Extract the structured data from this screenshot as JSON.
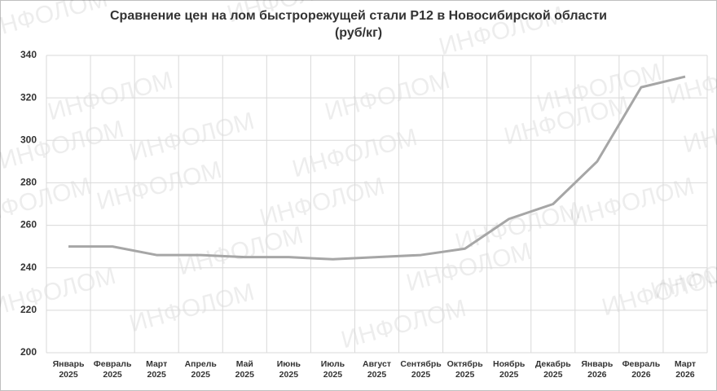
{
  "chart_data": {
    "type": "line",
    "title": "Сравнение цен на лом быстрорежущей стали Р12 в Новосибирской области",
    "subtitle": "(руб/кг)",
    "watermark": "ИНФОЛОМ",
    "categories": [
      "Январь 2025",
      "Февраль 2025",
      "Март 2025",
      "Апрель 2025",
      "Май 2025",
      "Июнь 2025",
      "Июль 2025",
      "Август 2025",
      "Сентябрь 2025",
      "Октябрь 2025",
      "Ноябрь 2025",
      "Декабрь 2025",
      "Январь 2026",
      "Февраль 2026",
      "Март 2026"
    ],
    "values": [
      250,
      250,
      246,
      246,
      245,
      245,
      244,
      245,
      246,
      249,
      263,
      270,
      290,
      325,
      330
    ],
    "color": "#a6a6a6",
    "ylim": [
      200,
      340
    ],
    "yticks": [
      200,
      220,
      240,
      260,
      280,
      300,
      320,
      340
    ],
    "grid": true
  }
}
